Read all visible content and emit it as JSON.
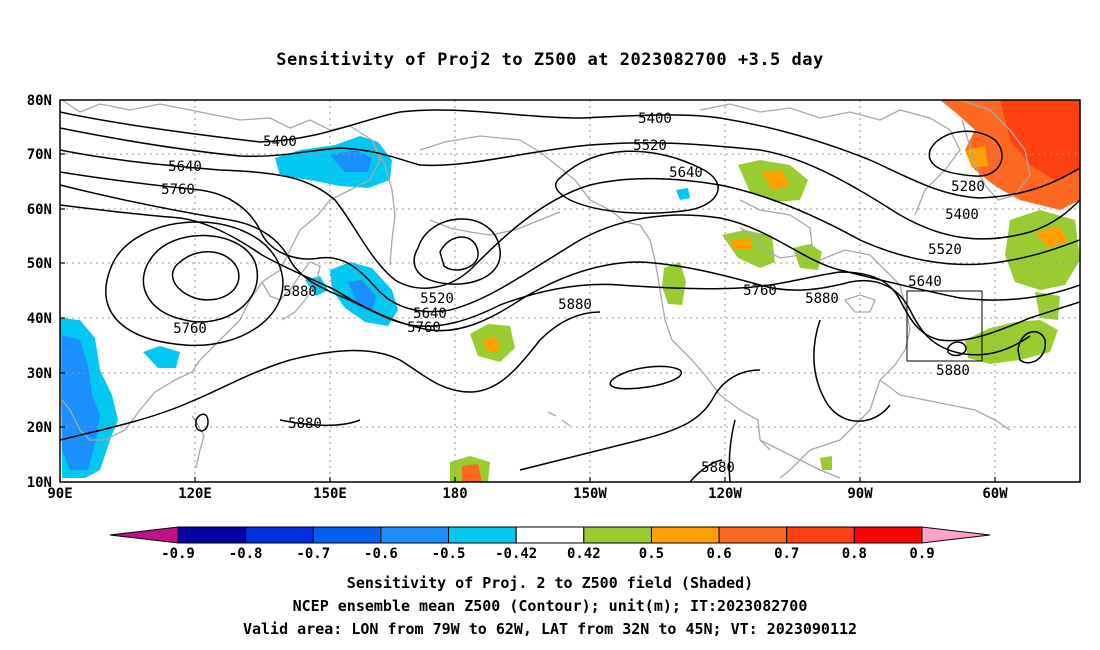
{
  "title": "Sensitivity of Proj2 to Z500 at 2023082700 +3.5 day",
  "lon_labels": [
    "90E",
    "120E",
    "150E",
    "180",
    "150W",
    "120W",
    "90W",
    "60W"
  ],
  "lat_labels": [
    "80N",
    "70N",
    "60N",
    "50N",
    "40N",
    "30N",
    "20N",
    "10N"
  ],
  "contour_labels": [
    "5400",
    "5400",
    "5520",
    "5640",
    "5760",
    "5880",
    "5760",
    "5640",
    "5520",
    "5880",
    "5760",
    "5880",
    "5880",
    "5640",
    "5520",
    "5400",
    "5280",
    "5640",
    "5760",
    "5880",
    "5880"
  ],
  "colorbar": {
    "labels": [
      "-0.9",
      "-0.8",
      "-0.7",
      "-0.6",
      "-0.5",
      "-0.42",
      "0.42",
      "0.5",
      "0.6",
      "0.7",
      "0.8",
      "0.9"
    ],
    "colors": [
      "#0000a0",
      "#0030e0",
      "#0060f0",
      "#1a90ff",
      "#00c8f0",
      "#ffffff",
      "#98cc30",
      "#ffa000",
      "#ff6820",
      "#ff4010",
      "#ff0000"
    ],
    "low_extend_color": "#c0108a",
    "high_extend_color": "#ffa0c8"
  },
  "captions": [
    "Sensitivity of Proj. 2 to Z500 field (Shaded)",
    "NCEP ensemble mean Z500 (Contour); unit(m); IT:2023082700",
    "Valid area: LON from 79W to 62W, LAT from 32N to 45N; VT: 2023090112"
  ]
}
